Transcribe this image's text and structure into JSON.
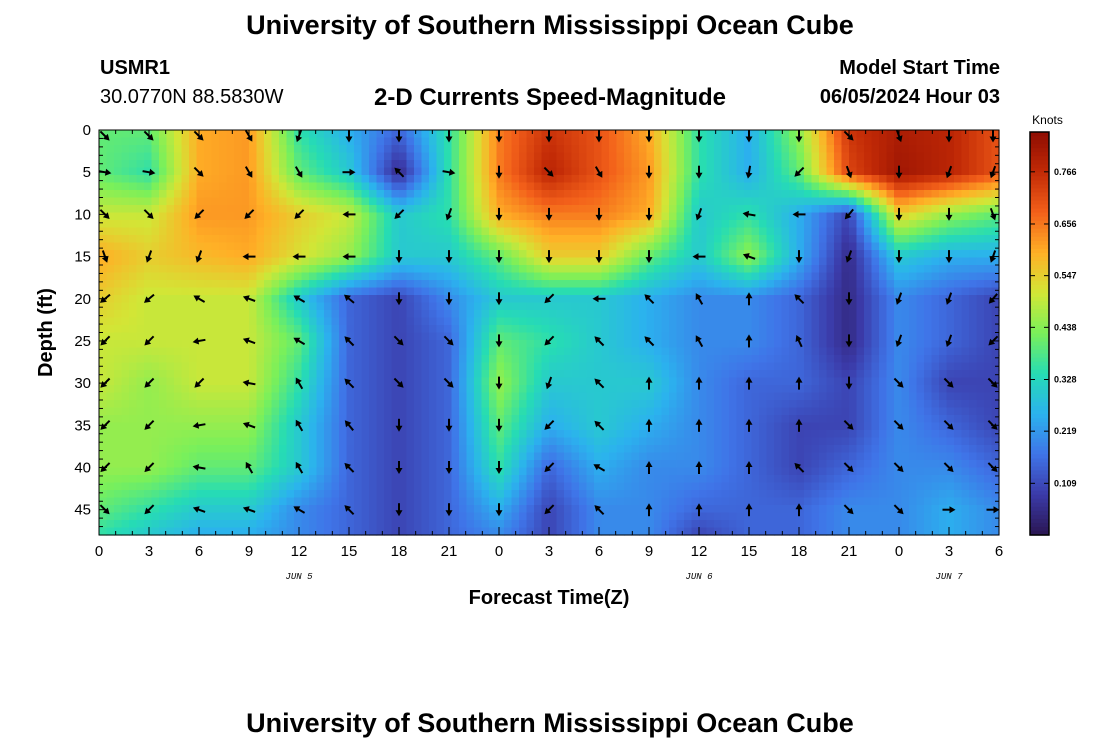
{
  "header": {
    "title": "University of Southern Mississippi Ocean Cube",
    "station_id": "USMR1",
    "coords": "30.0770N  88.5830W",
    "product": "2-D Currents Speed-Magnitude",
    "model_start_label": "Model Start Time",
    "model_start_time": "06/05/2024 Hour 03"
  },
  "footer": {
    "title": "University of Southern Mississippi Ocean Cube"
  },
  "chart_data": {
    "type": "heatmap",
    "title": "2-D Currents Speed-Magnitude",
    "xlabel": "Forecast Time(Z)",
    "ylabel": "Depth (ft)",
    "x_tick_labels": [
      "0",
      "3",
      "6",
      "9",
      "12",
      "15",
      "18",
      "21",
      "0",
      "3",
      "6",
      "9",
      "12",
      "15",
      "18",
      "21",
      "0",
      "3",
      "6"
    ],
    "x_range_hours": [
      0,
      54
    ],
    "date_labels": [
      {
        "label": "JUN 5",
        "hour": 12
      },
      {
        "label": "JUN 6",
        "hour": 36
      },
      {
        "label": "JUN 7",
        "hour": 51
      }
    ],
    "y_tick_labels": [
      "0",
      "5",
      "10",
      "15",
      "20",
      "25",
      "30",
      "35",
      "40",
      "45"
    ],
    "y_range_ft": [
      0,
      48
    ],
    "colorbar": {
      "title": "Knots",
      "tick_labels": [
        "0.766",
        "0.656",
        "0.547",
        "0.438",
        "0.328",
        "0.219",
        "0.109"
      ],
      "tick_values": [
        0.766,
        0.656,
        0.547,
        0.438,
        0.328,
        0.219,
        0.109
      ],
      "range": [
        0,
        0.85
      ],
      "colors": [
        "#2a1652",
        "#3b3aa8",
        "#3f74e8",
        "#2bb2ee",
        "#26dcb4",
        "#7af05a",
        "#d2e636",
        "#ffb026",
        "#f3601a",
        "#c22a06",
        "#8e0c02"
      ]
    },
    "speed_hours": [
      0,
      3,
      6,
      9,
      12,
      15,
      18,
      21,
      24,
      27,
      30,
      33,
      36,
      39,
      42,
      45,
      48,
      51,
      54
    ],
    "speed_depths_ft": [
      0,
      5,
      10,
      15,
      20,
      25,
      30,
      35,
      40,
      45,
      48
    ],
    "speed_knots": [
      [
        0.4,
        0.4,
        0.6,
        0.62,
        0.35,
        0.25,
        0.15,
        0.35,
        0.65,
        0.75,
        0.7,
        0.6,
        0.35,
        0.25,
        0.45,
        0.75,
        0.8,
        0.78,
        0.7
      ],
      [
        0.4,
        0.35,
        0.6,
        0.62,
        0.4,
        0.3,
        0.05,
        0.35,
        0.65,
        0.78,
        0.7,
        0.62,
        0.35,
        0.25,
        0.4,
        0.72,
        0.82,
        0.78,
        0.7
      ],
      [
        0.5,
        0.5,
        0.62,
        0.62,
        0.55,
        0.5,
        0.3,
        0.35,
        0.6,
        0.65,
        0.65,
        0.6,
        0.3,
        0.35,
        0.25,
        0.1,
        0.55,
        0.45,
        0.4
      ],
      [
        0.6,
        0.55,
        0.58,
        0.6,
        0.52,
        0.45,
        0.3,
        0.3,
        0.4,
        0.55,
        0.55,
        0.4,
        0.3,
        0.45,
        0.25,
        0.05,
        0.3,
        0.25,
        0.25
      ],
      [
        0.55,
        0.5,
        0.5,
        0.5,
        0.3,
        0.15,
        0.1,
        0.2,
        0.3,
        0.3,
        0.3,
        0.25,
        0.2,
        0.2,
        0.15,
        0.05,
        0.2,
        0.15,
        0.1
      ],
      [
        0.5,
        0.5,
        0.5,
        0.5,
        0.4,
        0.15,
        0.1,
        0.15,
        0.4,
        0.35,
        0.3,
        0.25,
        0.2,
        0.2,
        0.15,
        0.05,
        0.2,
        0.15,
        0.1
      ],
      [
        0.5,
        0.45,
        0.5,
        0.5,
        0.35,
        0.15,
        0.1,
        0.15,
        0.45,
        0.3,
        0.3,
        0.3,
        0.2,
        0.15,
        0.15,
        0.1,
        0.2,
        0.1,
        0.1
      ],
      [
        0.45,
        0.45,
        0.45,
        0.45,
        0.3,
        0.15,
        0.1,
        0.15,
        0.4,
        0.25,
        0.3,
        0.25,
        0.2,
        0.15,
        0.1,
        0.1,
        0.2,
        0.15,
        0.1
      ],
      [
        0.45,
        0.45,
        0.4,
        0.4,
        0.3,
        0.15,
        0.1,
        0.15,
        0.35,
        0.15,
        0.25,
        0.2,
        0.2,
        0.15,
        0.1,
        0.15,
        0.2,
        0.2,
        0.15
      ],
      [
        0.4,
        0.35,
        0.3,
        0.3,
        0.2,
        0.15,
        0.1,
        0.15,
        0.25,
        0.1,
        0.2,
        0.2,
        0.15,
        0.15,
        0.15,
        0.2,
        0.2,
        0.25,
        0.2
      ],
      [
        0.35,
        0.3,
        0.25,
        0.25,
        0.2,
        0.15,
        0.1,
        0.15,
        0.2,
        0.1,
        0.2,
        0.2,
        0.1,
        0.15,
        0.15,
        0.2,
        0.2,
        0.25,
        0.2
      ]
    ],
    "arrow_depths_ft": [
      0,
      5,
      10,
      15,
      20,
      25,
      30,
      35,
      40,
      45
    ],
    "arrow_dir_deg": [
      [
        135,
        135,
        135,
        150,
        200,
        180,
        180,
        180,
        180,
        180,
        180,
        180,
        180,
        180,
        180,
        135,
        160,
        180,
        180
      ],
      [
        100,
        100,
        135,
        150,
        150,
        90,
        315,
        100,
        180,
        135,
        150,
        180,
        180,
        190,
        225,
        160,
        180,
        200,
        200
      ],
      [
        135,
        135,
        225,
        225,
        225,
        270,
        225,
        200,
        180,
        180,
        180,
        180,
        200,
        280,
        270,
        220,
        180,
        180,
        160
      ],
      [
        160,
        200,
        200,
        270,
        270,
        270,
        180,
        180,
        180,
        180,
        180,
        180,
        270,
        290,
        180,
        200,
        180,
        180,
        200
      ],
      [
        230,
        230,
        300,
        290,
        300,
        310,
        180,
        180,
        180,
        225,
        270,
        315,
        330,
        0,
        315,
        180,
        200,
        200,
        220
      ],
      [
        225,
        225,
        260,
        290,
        300,
        315,
        135,
        135,
        180,
        225,
        315,
        315,
        330,
        0,
        335,
        180,
        200,
        200,
        225
      ],
      [
        225,
        225,
        225,
        280,
        330,
        315,
        135,
        135,
        180,
        200,
        315,
        0,
        0,
        0,
        0,
        180,
        135,
        135,
        135
      ],
      [
        225,
        225,
        260,
        290,
        330,
        320,
        180,
        180,
        180,
        225,
        315,
        0,
        0,
        0,
        0,
        135,
        135,
        135,
        135
      ],
      [
        225,
        225,
        280,
        330,
        330,
        315,
        180,
        180,
        180,
        225,
        300,
        0,
        0,
        0,
        315,
        135,
        135,
        135,
        135
      ],
      [
        135,
        225,
        290,
        290,
        300,
        315,
        180,
        180,
        180,
        225,
        315,
        0,
        0,
        0,
        0,
        135,
        135,
        90,
        90
      ]
    ]
  }
}
